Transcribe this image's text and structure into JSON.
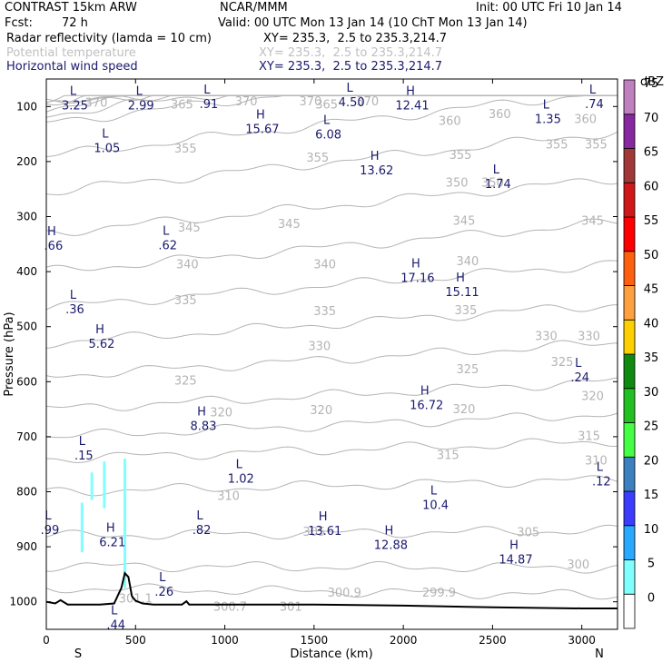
{
  "header": {
    "model": "CONTRAST 15km ARW",
    "org": "NCAR/MMM",
    "init": "Init: 00 UTC Fri 10 Jan 14",
    "fcst_label": "Fcst:",
    "fcst_value": "72 h",
    "valid": "Valid: 00 UTC Mon 13 Jan 14 (10 ChT Mon 13 Jan 14)",
    "field1_name": "Radar reflectivity (lamda = 10 cm)",
    "field1_xy": "XY= 235.3,  2.5 to 235.3,214.7",
    "field2_name": "Potential temperature",
    "field2_xy": "XY= 235.3,  2.5 to 235.3,214.7",
    "field3_name": "Horizontal wind speed",
    "field3_xy": "XY= 235.3,  2.5 to 235.3,214.7"
  },
  "colors": {
    "text": "#000000",
    "theta": "#b4b4b4",
    "wind": "#1a1a6e",
    "terrain": "#000000",
    "radar_5": "#80ffff"
  },
  "chart_data": {
    "type": "cross-section",
    "xlabel": "Distance (km)",
    "ylabel": "Pressure (hPa)",
    "xlim": [
      0,
      3200
    ],
    "ylim": [
      1050,
      50
    ],
    "xticks": [
      0,
      500,
      1000,
      1500,
      2000,
      2500,
      3000
    ],
    "yticks": [
      100,
      200,
      300,
      400,
      500,
      600,
      700,
      800,
      900,
      1000
    ],
    "end_labels": {
      "left": "S",
      "right": "N"
    },
    "colorbar": {
      "unit": "dBZ",
      "levels": [
        "0",
        "5",
        "10",
        "15",
        "20",
        "25",
        "30",
        "35",
        "40",
        "45",
        "50",
        "55",
        "60",
        "65",
        "70",
        "75"
      ],
      "colors": [
        "#ffffff",
        "#80ffff",
        "#28a8ff",
        "#3c3cff",
        "#3c80c0",
        "#44ff44",
        "#22c022",
        "#108a10",
        "#ffd000",
        "#ffa040",
        "#ff6010",
        "#ff0000",
        "#d01818",
        "#a03838",
        "#8828a0",
        "#c080c0"
      ]
    },
    "theta_labels": [
      {
        "x": 1120,
        "p": 90,
        "t": "370"
      },
      {
        "x": 1480,
        "p": 90,
        "t": "370"
      },
      {
        "x": 1800,
        "p": 90,
        "t": "370"
      },
      {
        "x": 280,
        "p": 92,
        "t": "370"
      },
      {
        "x": 760,
        "p": 95,
        "t": "365"
      },
      {
        "x": 1570,
        "p": 95,
        "t": "365"
      },
      {
        "x": 2260,
        "p": 125,
        "t": "360"
      },
      {
        "x": 2540,
        "p": 113,
        "t": "360"
      },
      {
        "x": 3020,
        "p": 122,
        "t": "360"
      },
      {
        "x": 780,
        "p": 175,
        "t": "355"
      },
      {
        "x": 1520,
        "p": 192,
        "t": "355"
      },
      {
        "x": 2320,
        "p": 187,
        "t": "355"
      },
      {
        "x": 2860,
        "p": 168,
        "t": "355"
      },
      {
        "x": 3080,
        "p": 168,
        "t": "355"
      },
      {
        "x": 2300,
        "p": 237,
        "t": "350"
      },
      {
        "x": 2500,
        "p": 237,
        "t": "350"
      },
      {
        "x": 800,
        "p": 319,
        "t": "345"
      },
      {
        "x": 1360,
        "p": 312,
        "t": "345"
      },
      {
        "x": 2340,
        "p": 307,
        "t": "345"
      },
      {
        "x": 3060,
        "p": 307,
        "t": "345"
      },
      {
        "x": 790,
        "p": 386,
        "t": "340"
      },
      {
        "x": 1560,
        "p": 386,
        "t": "340"
      },
      {
        "x": 2360,
        "p": 380,
        "t": "340"
      },
      {
        "x": 780,
        "p": 451,
        "t": "335"
      },
      {
        "x": 1560,
        "p": 471,
        "t": "335"
      },
      {
        "x": 2350,
        "p": 469,
        "t": "335"
      },
      {
        "x": 1530,
        "p": 534,
        "t": "330"
      },
      {
        "x": 2800,
        "p": 516,
        "t": "330"
      },
      {
        "x": 3040,
        "p": 516,
        "t": "330"
      },
      {
        "x": 780,
        "p": 597,
        "t": "325"
      },
      {
        "x": 2360,
        "p": 576,
        "t": "325"
      },
      {
        "x": 2890,
        "p": 563,
        "t": "325"
      },
      {
        "x": 980,
        "p": 655,
        "t": "320"
      },
      {
        "x": 1540,
        "p": 651,
        "t": "320"
      },
      {
        "x": 2340,
        "p": 649,
        "t": "320"
      },
      {
        "x": 3060,
        "p": 625,
        "t": "320"
      },
      {
        "x": 2250,
        "p": 732,
        "t": "315"
      },
      {
        "x": 3040,
        "p": 698,
        "t": "315"
      },
      {
        "x": 1020,
        "p": 807,
        "t": "310"
      },
      {
        "x": 3080,
        "p": 742,
        "t": "310"
      },
      {
        "x": 1500,
        "p": 872,
        "t": "305"
      },
      {
        "x": 2700,
        "p": 873,
        "t": "305"
      },
      {
        "x": 2980,
        "p": 931,
        "t": "300"
      },
      {
        "x": 500,
        "p": 993,
        "t": "301.1"
      },
      {
        "x": 1030,
        "p": 1008,
        "t": "300.7"
      },
      {
        "x": 1370,
        "p": 1008,
        "t": "301"
      },
      {
        "x": 1670,
        "p": 982,
        "t": "300.9"
      },
      {
        "x": 2200,
        "p": 982,
        "t": "299.9"
      }
    ],
    "extrema": [
      {
        "x": 150,
        "p": 82,
        "k": "L",
        "v": "3.25"
      },
      {
        "x": 520,
        "p": 82,
        "k": "L",
        "v": "2.99"
      },
      {
        "x": 900,
        "p": 80,
        "k": "L",
        "v": ".91"
      },
      {
        "x": 1700,
        "p": 76,
        "k": "L",
        "v": "4.50"
      },
      {
        "x": 2040,
        "p": 82,
        "k": "H",
        "v": "12.41"
      },
      {
        "x": 3060,
        "p": 80,
        "k": "L",
        "v": ".74"
      },
      {
        "x": 1200,
        "p": 125,
        "k": "H",
        "v": "15.67"
      },
      {
        "x": 1570,
        "p": 135,
        "k": "L",
        "v": "6.08"
      },
      {
        "x": 2800,
        "p": 107,
        "k": "L",
        "v": "1.35"
      },
      {
        "x": 330,
        "p": 160,
        "k": "L",
        "v": "1.05"
      },
      {
        "x": 1840,
        "p": 200,
        "k": "H",
        "v": "13.62"
      },
      {
        "x": 2520,
        "p": 225,
        "k": "L",
        "v": "1.74"
      },
      {
        "x": 30,
        "p": 337,
        "k": "H",
        "v": ".66"
      },
      {
        "x": 670,
        "p": 336,
        "k": "L",
        "v": ".62"
      },
      {
        "x": 2070,
        "p": 396,
        "k": "H",
        "v": "17.16"
      },
      {
        "x": 2320,
        "p": 421,
        "k": "H",
        "v": "15.11"
      },
      {
        "x": 150,
        "p": 453,
        "k": "L",
        "v": ".36"
      },
      {
        "x": 300,
        "p": 515,
        "k": "H",
        "v": "5.62"
      },
      {
        "x": 2980,
        "p": 576,
        "k": "L",
        "v": ".24"
      },
      {
        "x": 2120,
        "p": 627,
        "k": "H",
        "v": "16.72"
      },
      {
        "x": 870,
        "p": 665,
        "k": "H",
        "v": "8.83"
      },
      {
        "x": 200,
        "p": 718,
        "k": "L",
        "v": ".15"
      },
      {
        "x": 1080,
        "p": 760,
        "k": "L",
        "v": "1.02"
      },
      {
        "x": 3100,
        "p": 765,
        "k": "L",
        "v": ".12"
      },
      {
        "x": 2170,
        "p": 808,
        "k": "L",
        "v": "10.4"
      },
      {
        "x": 10,
        "p": 854,
        "k": "L",
        "v": ".99"
      },
      {
        "x": 860,
        "p": 854,
        "k": "L",
        "v": ".82"
      },
      {
        "x": 1550,
        "p": 855,
        "k": "H",
        "v": "13.61"
      },
      {
        "x": 360,
        "p": 876,
        "k": "H",
        "v": "6.21"
      },
      {
        "x": 1920,
        "p": 881,
        "k": "H",
        "v": "12.88"
      },
      {
        "x": 2620,
        "p": 907,
        "k": "H",
        "v": "14.87"
      },
      {
        "x": 650,
        "p": 966,
        "k": "L",
        "v": ".26"
      },
      {
        "x": 380,
        "p": 1026,
        "k": "L",
        "v": ".44"
      }
    ],
    "terrain": [
      [
        0,
        1000
      ],
      [
        50,
        1003
      ],
      [
        80,
        997
      ],
      [
        120,
        1005
      ],
      [
        200,
        1005
      ],
      [
        300,
        1005
      ],
      [
        380,
        1003
      ],
      [
        420,
        975
      ],
      [
        440,
        948
      ],
      [
        460,
        955
      ],
      [
        480,
        990
      ],
      [
        500,
        998
      ],
      [
        540,
        1003
      ],
      [
        600,
        1005
      ],
      [
        760,
        1005
      ],
      [
        785,
        999
      ],
      [
        800,
        1005
      ],
      [
        1000,
        1005
      ],
      [
        1500,
        1005
      ],
      [
        2000,
        1007
      ],
      [
        2500,
        1010
      ],
      [
        3000,
        1012
      ],
      [
        3200,
        1012
      ]
    ],
    "radar_streaks": [
      [
        200,
        820,
        910
      ],
      [
        255,
        765,
        815
      ],
      [
        325,
        745,
        830
      ],
      [
        440,
        740,
        975
      ]
    ]
  }
}
